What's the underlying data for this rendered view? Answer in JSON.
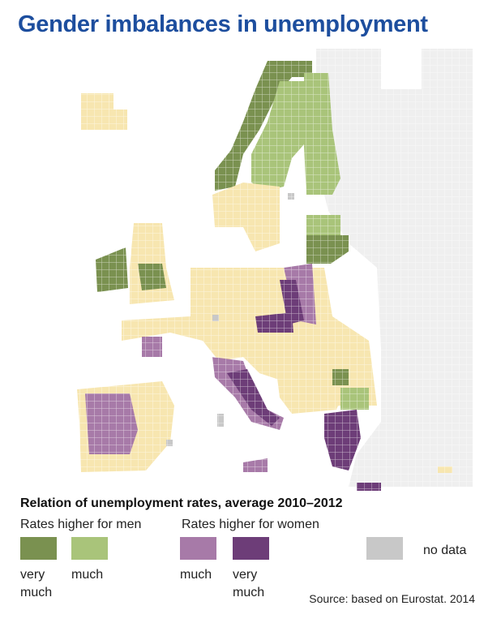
{
  "header": {
    "title": "Gender imbalances in unemployment"
  },
  "legend": {
    "title": "Relation of unemployment rates, average 2010–2012",
    "groups": [
      "Rates higher for men",
      "Rates higher for women"
    ],
    "items": [
      {
        "label": "very much",
        "color": "#7a9150"
      },
      {
        "label": "much",
        "color": "#a9c47a"
      },
      {
        "label": "much",
        "color": "#a77aa8"
      },
      {
        "label": "very much",
        "color": "#6d3d78"
      },
      {
        "label": "no data",
        "color": "#c8c8c8"
      }
    ]
  },
  "source": "Source: based on Eurostat. 2014"
}
